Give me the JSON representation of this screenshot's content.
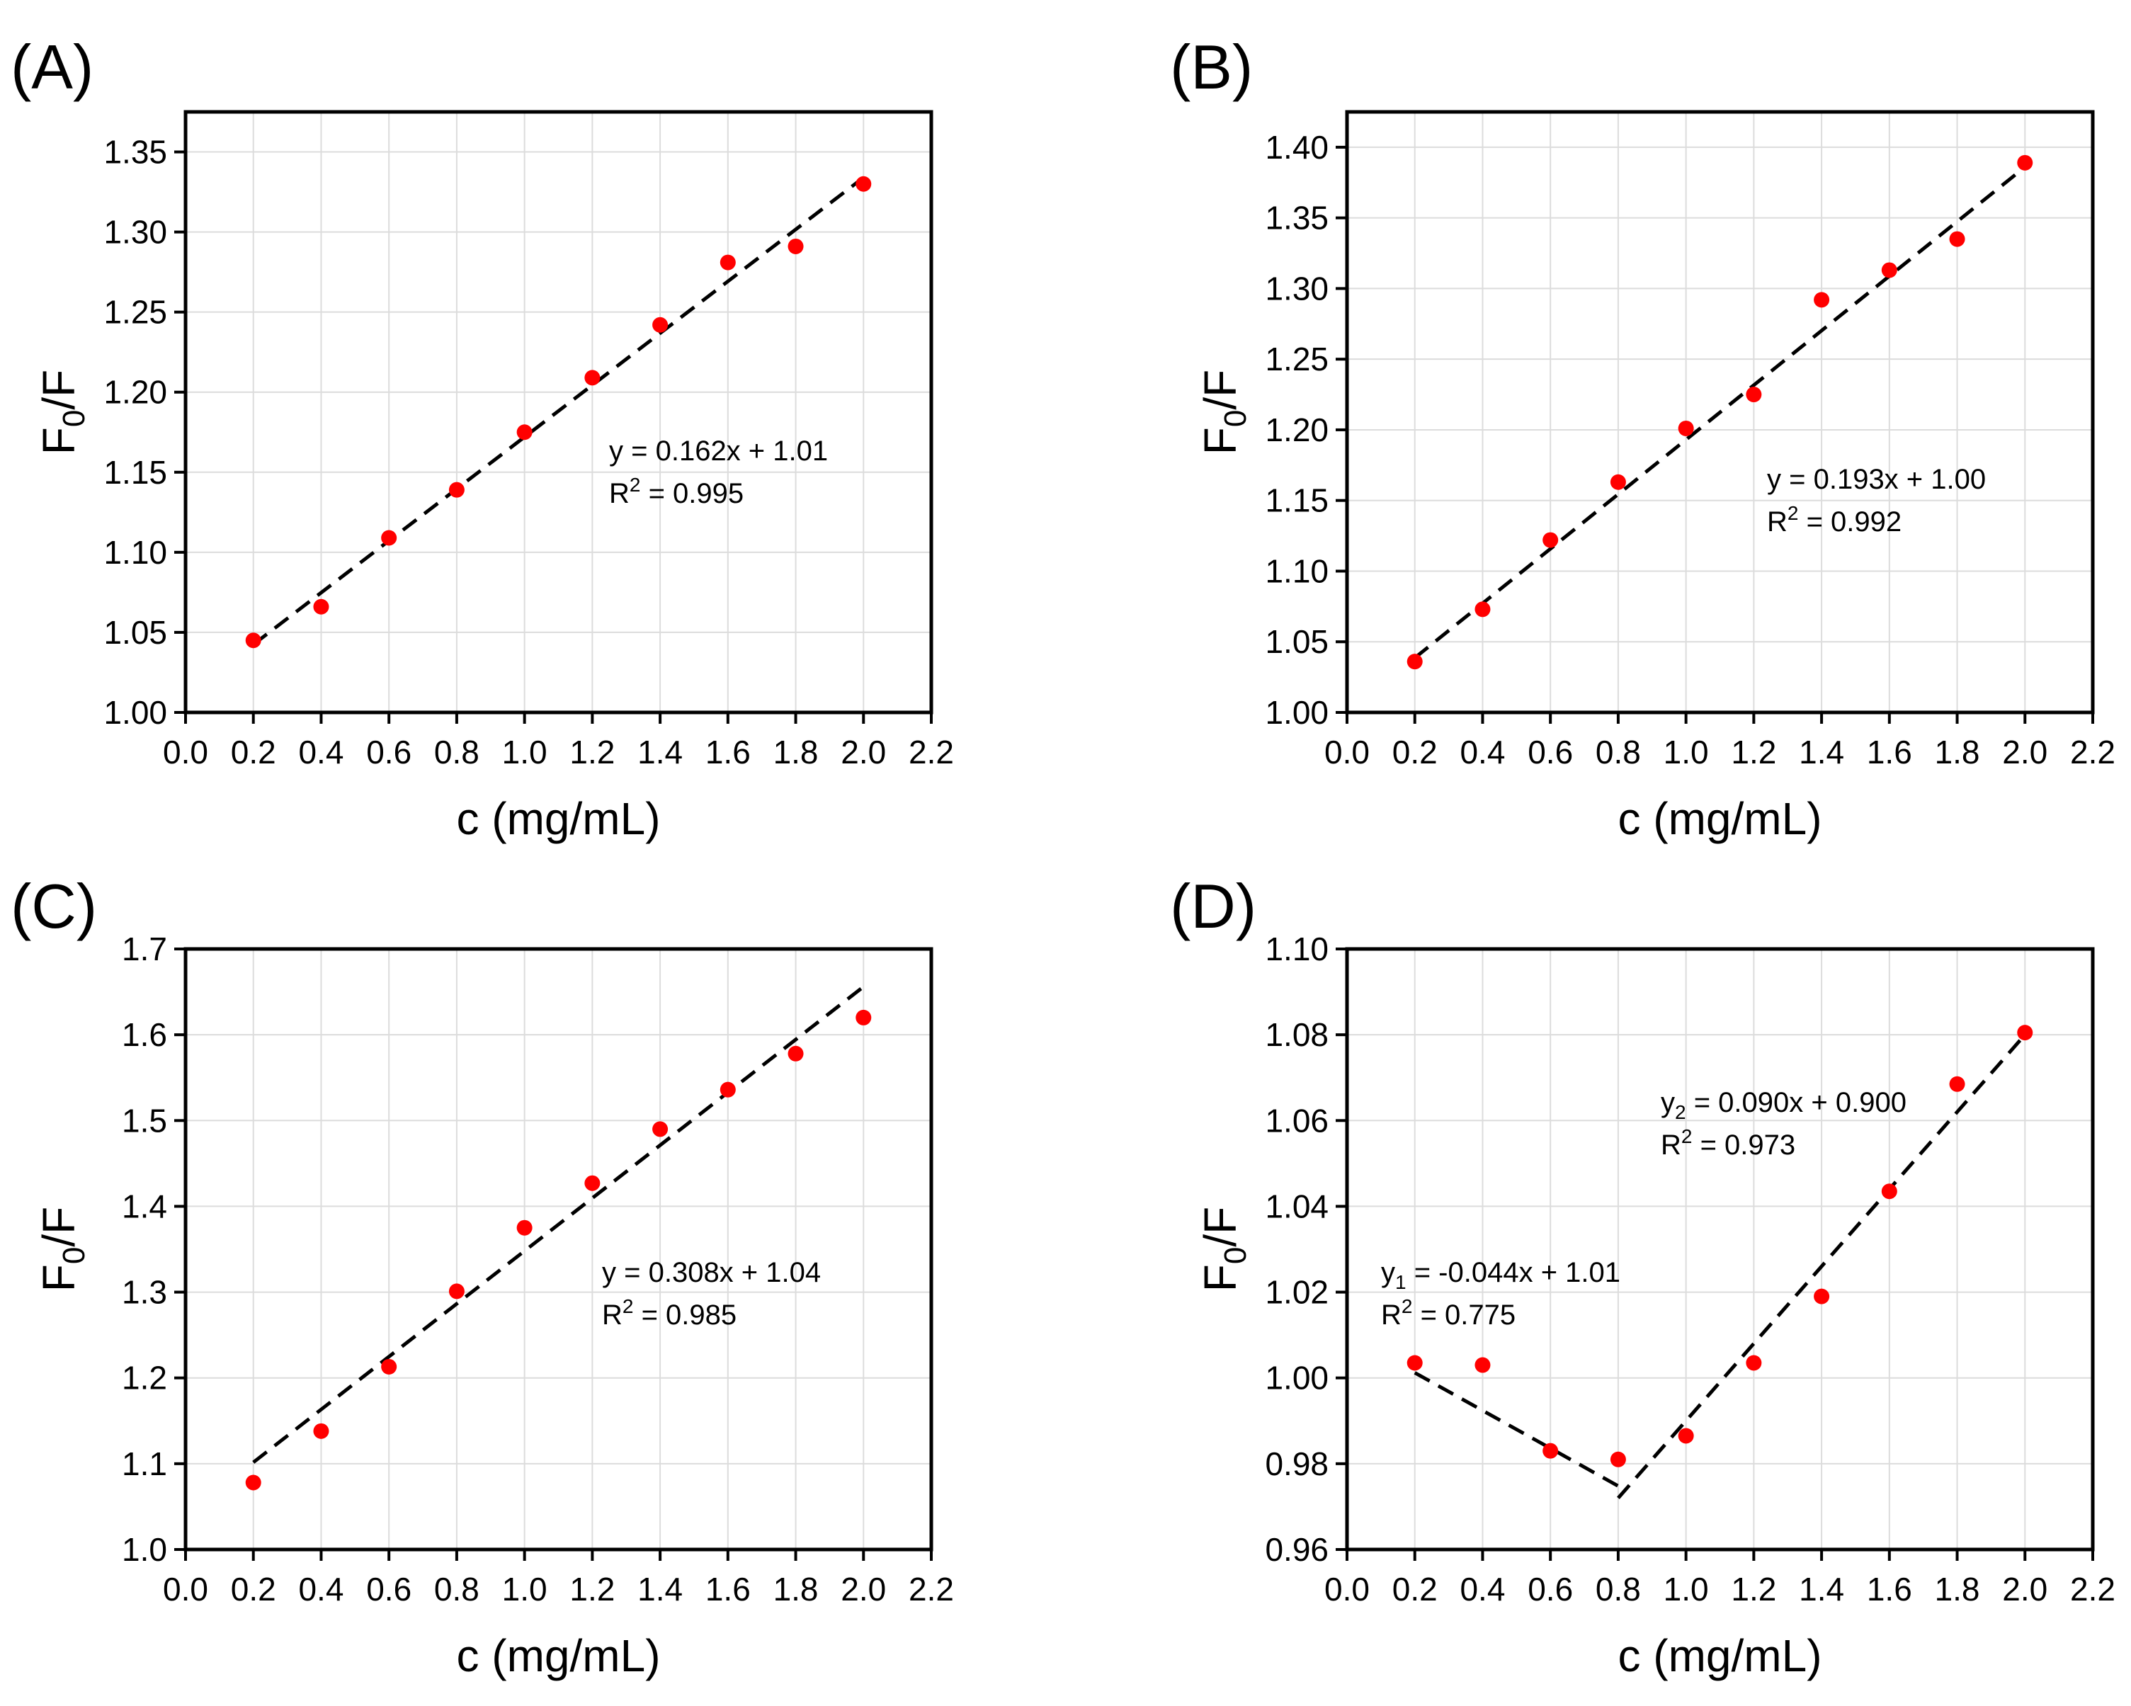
{
  "figure": {
    "colors": {
      "point": "#ff0000",
      "fit": "#000000",
      "grid": "#dcdcdc"
    }
  },
  "chart_data": [
    {
      "type": "scatter",
      "panel_label": "(A)",
      "xlabel": "c (mg/mL)",
      "ylabel_main": "F",
      "ylabel_sub": "0",
      "ylabel_tail": "/F",
      "xlim": [
        0.0,
        2.2
      ],
      "ylim": [
        1.0,
        1.375
      ],
      "xticks": [
        "0.0",
        "0.2",
        "0.4",
        "0.6",
        "0.8",
        "1.0",
        "1.2",
        "1.4",
        "1.6",
        "1.8",
        "2.0",
        "2.2"
      ],
      "yticks": [
        "1.00",
        "1.05",
        "1.10",
        "1.15",
        "1.20",
        "1.25",
        "1.30",
        "1.35"
      ],
      "grid": true,
      "x": [
        0.2,
        0.4,
        0.6,
        0.8,
        1.0,
        1.2,
        1.4,
        1.6,
        1.8,
        2.0
      ],
      "y": [
        1.045,
        1.066,
        1.109,
        1.139,
        1.175,
        1.209,
        1.242,
        1.281,
        1.291,
        1.33
      ],
      "fits": [
        {
          "x_range": [
            0.2,
            2.0
          ],
          "slope": 0.162,
          "intercept": 1.01,
          "eq_var": "y",
          "eq_sub": "",
          "eq_rest": " = 0.162x + 1.01",
          "r2_text": " = 0.995",
          "label_pos": "center-right"
        }
      ]
    },
    {
      "type": "scatter",
      "panel_label": "(B)",
      "xlabel": "c (mg/mL)",
      "ylabel_main": "F",
      "ylabel_sub": "0",
      "ylabel_tail": "/F",
      "xlim": [
        0.0,
        2.2
      ],
      "ylim": [
        1.0,
        1.425
      ],
      "xticks": [
        "0.0",
        "0.2",
        "0.4",
        "0.6",
        "0.8",
        "1.0",
        "1.2",
        "1.4",
        "1.6",
        "1.8",
        "2.0",
        "2.2"
      ],
      "yticks": [
        "1.00",
        "1.05",
        "1.10",
        "1.15",
        "1.20",
        "1.25",
        "1.30",
        "1.35",
        "1.40"
      ],
      "grid": true,
      "x": [
        0.2,
        0.4,
        0.6,
        0.8,
        1.0,
        1.2,
        1.4,
        1.6,
        1.8,
        2.0
      ],
      "y": [
        1.036,
        1.073,
        1.122,
        1.163,
        1.201,
        1.225,
        1.292,
        1.313,
        1.335,
        1.389
      ],
      "fits": [
        {
          "x_range": [
            0.2,
            2.0
          ],
          "slope": 0.193,
          "intercept": 1.0,
          "eq_var": "y",
          "eq_sub": "",
          "eq_rest": " = 0.193x + 1.00",
          "r2_text": " = 0.992",
          "label_pos": "center-right"
        }
      ]
    },
    {
      "type": "scatter",
      "panel_label": "(C)",
      "xlabel": "c (mg/mL)",
      "ylabel_main": "F",
      "ylabel_sub": "0",
      "ylabel_tail": "/F",
      "xlim": [
        0.0,
        2.2
      ],
      "ylim": [
        1.0,
        1.7
      ],
      "xticks": [
        "0.0",
        "0.2",
        "0.4",
        "0.6",
        "0.8",
        "1.0",
        "1.2",
        "1.4",
        "1.6",
        "1.8",
        "2.0",
        "2.2"
      ],
      "yticks": [
        "1.0",
        "1.1",
        "1.2",
        "1.3",
        "1.4",
        "1.5",
        "1.6",
        "1.7"
      ],
      "grid": true,
      "x": [
        0.2,
        0.4,
        0.6,
        0.8,
        1.0,
        1.2,
        1.4,
        1.6,
        1.8,
        2.0
      ],
      "y": [
        1.078,
        1.138,
        1.213,
        1.301,
        1.375,
        1.427,
        1.49,
        1.536,
        1.578,
        1.62
      ],
      "fits": [
        {
          "x_range": [
            0.2,
            2.0
          ],
          "slope": 0.308,
          "intercept": 1.04,
          "eq_var": "y",
          "eq_sub": "",
          "eq_rest": " = 0.308x + 1.04",
          "r2_text": " = 0.985",
          "label_pos": "center-right"
        }
      ]
    },
    {
      "type": "scatter",
      "panel_label": "(D)",
      "xlabel": "c (mg/mL)",
      "ylabel_main": "F",
      "ylabel_sub": "0",
      "ylabel_tail": "/F",
      "xlim": [
        0.0,
        2.2
      ],
      "ylim": [
        0.96,
        1.1
      ],
      "xticks": [
        "0.0",
        "0.2",
        "0.4",
        "0.6",
        "0.8",
        "1.0",
        "1.2",
        "1.4",
        "1.6",
        "1.8",
        "2.0",
        "2.2"
      ],
      "yticks": [
        "0.96",
        "0.98",
        "1.00",
        "1.02",
        "1.04",
        "1.06",
        "1.08",
        "1.10"
      ],
      "grid": true,
      "x": [
        0.2,
        0.4,
        0.6,
        0.8,
        1.0,
        1.2,
        1.4,
        1.6,
        1.8,
        2.0
      ],
      "y": [
        1.0035,
        1.003,
        0.983,
        0.981,
        0.9865,
        1.0035,
        1.019,
        1.0435,
        1.0685,
        1.0805
      ],
      "fits": [
        {
          "x_range": [
            0.2,
            0.8
          ],
          "slope": -0.044,
          "intercept": 1.01,
          "eq_var": "y",
          "eq_sub": "1",
          "eq_rest": " = -0.044x + 1.01",
          "r2_text": " = 0.775",
          "label_pos": "left"
        },
        {
          "x_range": [
            0.8,
            2.0
          ],
          "slope": 0.09,
          "intercept": 0.9,
          "eq_var": "y",
          "eq_sub": "2",
          "eq_rest": " = 0.090x + 0.900",
          "r2_text": " = 0.973",
          "label_pos": "top-right"
        }
      ]
    }
  ]
}
